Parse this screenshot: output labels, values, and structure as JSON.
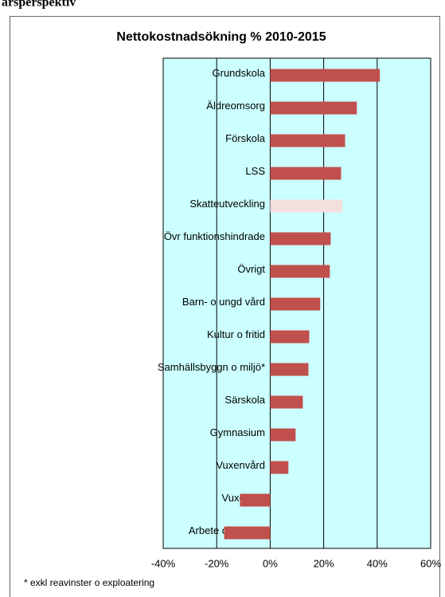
{
  "header": "årsperspektiv",
  "chart_data": {
    "type": "barh",
    "title": "Nettokostnadsökning % 2010-2015",
    "categories": [
      "Grundskola",
      "Äldreomsorg",
      "Förskola",
      "LSS",
      "Skatteutveckling",
      "Övr funktionshindrade",
      "Övrigt",
      "Barn- o ungd vård",
      "Kultur o fritid",
      "Samhällsbyggn o miljö*",
      "Särskola",
      "Gymnasium",
      "Vuxenvård",
      "Vuxenutb",
      "Arbete o försörjn"
    ],
    "values": [
      41,
      32.4,
      28,
      26.5,
      27,
      22.6,
      22.3,
      18.7,
      14.6,
      14.3,
      12.2,
      9.5,
      6.8,
      -11.3,
      -17.2
    ],
    "colors": [
      "#c0504d",
      "#c0504d",
      "#c0504d",
      "#c0504d",
      "#f4dede",
      "#c0504d",
      "#c0504d",
      "#c0504d",
      "#c0504d",
      "#c0504d",
      "#c0504d",
      "#c0504d",
      "#c0504d",
      "#c0504d",
      "#c0504d"
    ],
    "xlim": [
      -40,
      60
    ],
    "xticks": [
      {
        "value": -40,
        "label": "-40%"
      },
      {
        "value": -20,
        "label": "-20%"
      },
      {
        "value": 0,
        "label": "0%"
      },
      {
        "value": 20,
        "label": "20%"
      },
      {
        "value": 40,
        "label": "40%"
      },
      {
        "value": 60,
        "label": "60%"
      }
    ],
    "grid": true,
    "plot_background": "#ccffff",
    "footnote": "* exkl reavinster o exploatering"
  }
}
